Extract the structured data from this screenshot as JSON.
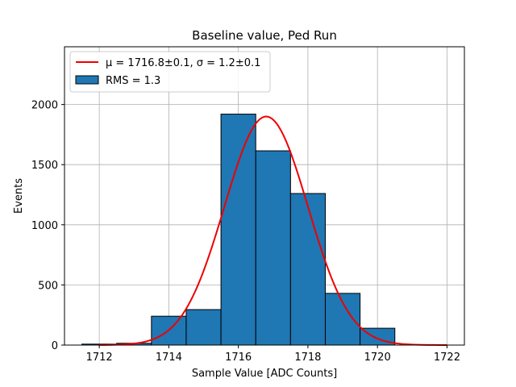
{
  "chart_data": {
    "type": "bar",
    "title": "Baseline value, Ped Run",
    "xlabel": "Sample Value [ADC Counts]",
    "ylabel": "Events",
    "xlim": [
      1711.0,
      1722.5
    ],
    "ylim": [
      0,
      2480
    ],
    "grid": true,
    "xticks": [
      1712,
      1714,
      1716,
      1718,
      1720,
      1722
    ],
    "yticks": [
      0,
      500,
      1000,
      1500,
      2000
    ],
    "histogram": {
      "name": "RMS = 1.3",
      "color": "#1f77b4",
      "edge_color": "#000000",
      "bins": [
        {
          "x0": 1711.5,
          "x1": 1712.5,
          "count": 8
        },
        {
          "x0": 1712.5,
          "x1": 1713.5,
          "count": 15
        },
        {
          "x0": 1713.5,
          "x1": 1714.5,
          "count": 240
        },
        {
          "x0": 1714.5,
          "x1": 1715.5,
          "count": 295
        },
        {
          "x0": 1715.5,
          "x1": 1716.5,
          "count": 1920
        },
        {
          "x0": 1716.5,
          "x1": 1717.5,
          "count": 1615
        },
        {
          "x0": 1717.5,
          "x1": 1718.5,
          "count": 1260
        },
        {
          "x0": 1718.5,
          "x1": 1719.5,
          "count": 430
        },
        {
          "x0": 1719.5,
          "x1": 1720.5,
          "count": 140
        }
      ]
    },
    "fit": {
      "type": "gaussian",
      "mu": 1716.8,
      "sigma": 1.2,
      "amplitude": 1900,
      "x_range": [
        1712,
        1722
      ],
      "color": "#ee0000"
    },
    "legend": {
      "location": "top-left",
      "fit_label_prefix": "μ = 1716.8±0.1, ",
      "fit_label_suffix": "σ = 1.2±0.1",
      "hist_label": "RMS = 1.3"
    }
  }
}
